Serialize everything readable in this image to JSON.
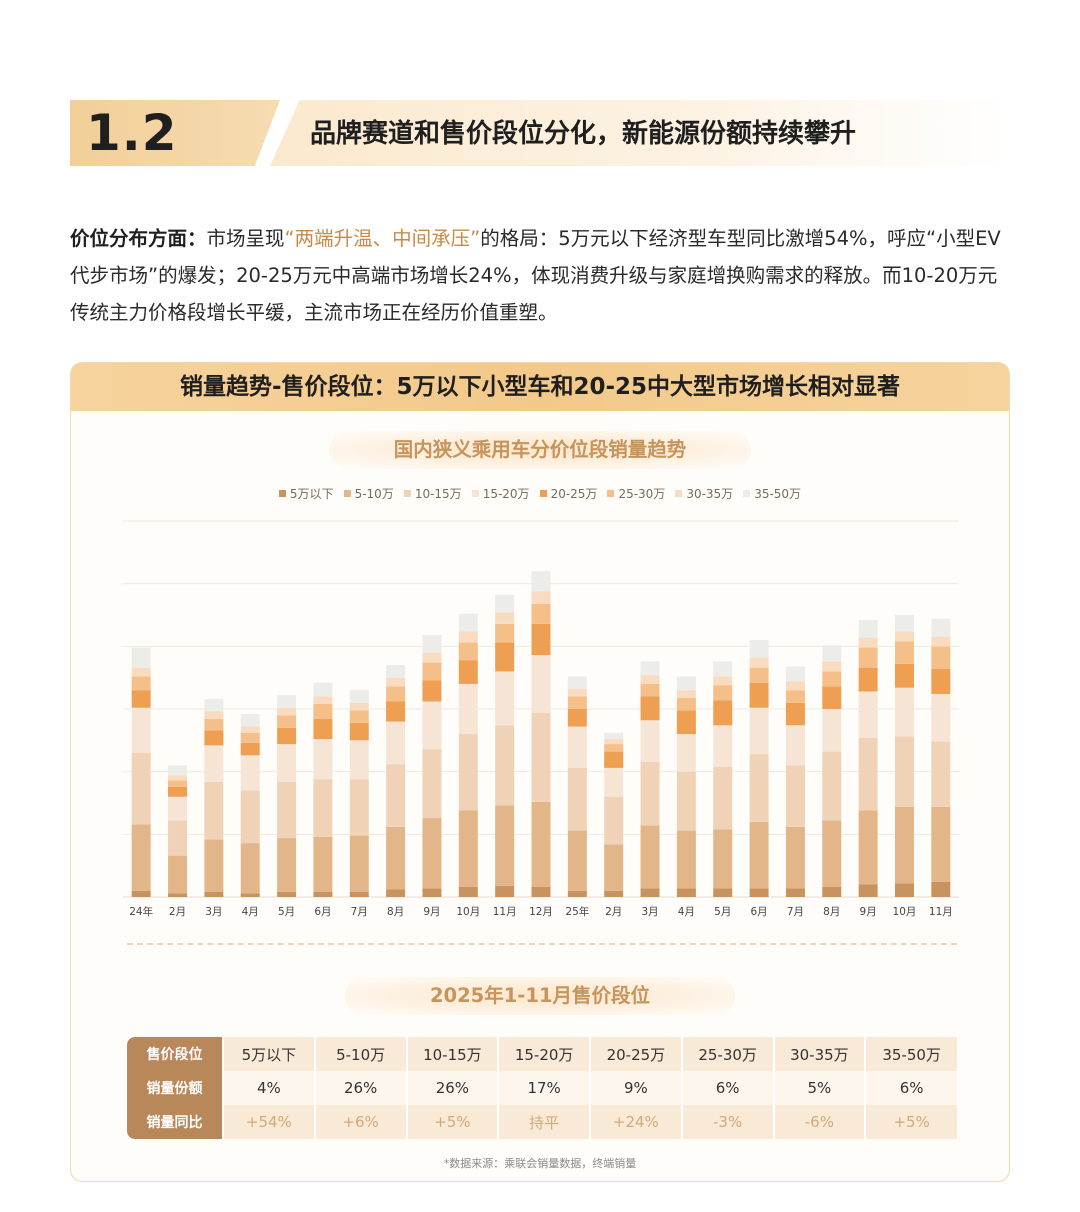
{
  "section": {
    "number": "1.2",
    "title": "品牌赛道和售价段位分化，新能源份额持续攀升"
  },
  "paragraph": {
    "lead": "价位分布方面：",
    "part1": "市场呈现",
    "highlight": "“两端升温、中间承压”",
    "part2": "的格局：5万元以下经济型车型同比激增54%，呼应“小型EV代步市场”的爆发；20-25万元中高端市场增长24%，体现消费升级与家庭增换购需求的释放。而10-20万元传统主力价格段增长平缓，主流市场正在经历价值重塑。"
  },
  "card": {
    "title": "销量趋势-售价段位：5万以下小型车和20-25中大型市场增长相对显著",
    "chart_title": "国内狭义乘用车分价位段销量趋势",
    "table_title": "2025年1-11月售价段位",
    "source": "*数据来源：乘联会销量数据，终端销量"
  },
  "chart_data": {
    "type": "stacked-bar",
    "title": "国内狭义乘用车分价位段销量趋势",
    "xlabel": "",
    "ylabel": "",
    "grid": true,
    "ylim": [
      0,
      300
    ],
    "y_gridlines": [
      0,
      50,
      100,
      150,
      200,
      250,
      300
    ],
    "categories": [
      "24年",
      "2月",
      "3月",
      "4月",
      "5月",
      "6月",
      "7月",
      "8月",
      "9月",
      "10月",
      "11月",
      "12月",
      "25年",
      "2月",
      "3月",
      "4月",
      "5月",
      "6月",
      "7月",
      "8月",
      "9月",
      "10月",
      "11月"
    ],
    "series": [
      {
        "name": "5万以下",
        "color": "#c9935f",
        "values": [
          5,
          3,
          4,
          3,
          4,
          4,
          4,
          6,
          7,
          8,
          9,
          8,
          5,
          5,
          7,
          7,
          7,
          7,
          7,
          8,
          10,
          11,
          12
        ]
      },
      {
        "name": "5-10万",
        "color": "#e3b68a",
        "values": [
          53,
          30,
          42,
          40,
          43,
          44,
          45,
          50,
          56,
          61,
          64,
          68,
          48,
          37,
          50,
          46,
          47,
          53,
          49,
          53,
          59,
          61,
          60
        ]
      },
      {
        "name": "10-15万",
        "color": "#f0d3b6",
        "values": [
          57,
          28,
          46,
          42,
          45,
          46,
          45,
          50,
          55,
          61,
          64,
          71,
          50,
          38,
          51,
          47,
          50,
          54,
          49,
          55,
          58,
          56,
          52
        ]
      },
      {
        "name": "15-20万",
        "color": "#f6e5d4",
        "values": [
          36,
          19,
          29,
          28,
          30,
          32,
          31,
          34,
          38,
          40,
          43,
          46,
          33,
          23,
          33,
          30,
          33,
          37,
          32,
          34,
          37,
          39,
          38
        ]
      },
      {
        "name": "20-25万",
        "color": "#ef9f52",
        "values": [
          14,
          8,
          12,
          10,
          13,
          16,
          14,
          16,
          17,
          19,
          23,
          25,
          14,
          13,
          19,
          19,
          20,
          20,
          18,
          18,
          19,
          19,
          20
        ]
      },
      {
        "name": "25-30万",
        "color": "#f5bf8a",
        "values": [
          11,
          5,
          9,
          8,
          10,
          12,
          10,
          12,
          14,
          14,
          15,
          16,
          10,
          6,
          10,
          10,
          12,
          12,
          10,
          12,
          16,
          18,
          18
        ]
      },
      {
        "name": "30-35万",
        "color": "#f9dcc0",
        "values": [
          7,
          4,
          6,
          5,
          6,
          6,
          6,
          7,
          8,
          9,
          9,
          10,
          6,
          4,
          7,
          6,
          7,
          8,
          7,
          8,
          8,
          8,
          8
        ]
      },
      {
        "name": "35-50万",
        "color": "#ecece8",
        "values": [
          16,
          8,
          10,
          10,
          10,
          11,
          10,
          10,
          14,
          14,
          14,
          16,
          10,
          5,
          11,
          11,
          12,
          14,
          12,
          13,
          14,
          13,
          14
        ]
      }
    ]
  },
  "table": {
    "row_labels": [
      "售价段位",
      "销量份额",
      "销量同比"
    ],
    "headers": [
      "5万以下",
      "5-10万",
      "10-15万",
      "15-20万",
      "20-25万",
      "25-30万",
      "30-35万",
      "35-50万"
    ],
    "share": [
      "4%",
      "26%",
      "26%",
      "17%",
      "9%",
      "6%",
      "5%",
      "6%"
    ],
    "yoy": [
      "+54%",
      "+6%",
      "+5%",
      "持平",
      "+24%",
      "-3%",
      "-6%",
      "+5%"
    ]
  }
}
